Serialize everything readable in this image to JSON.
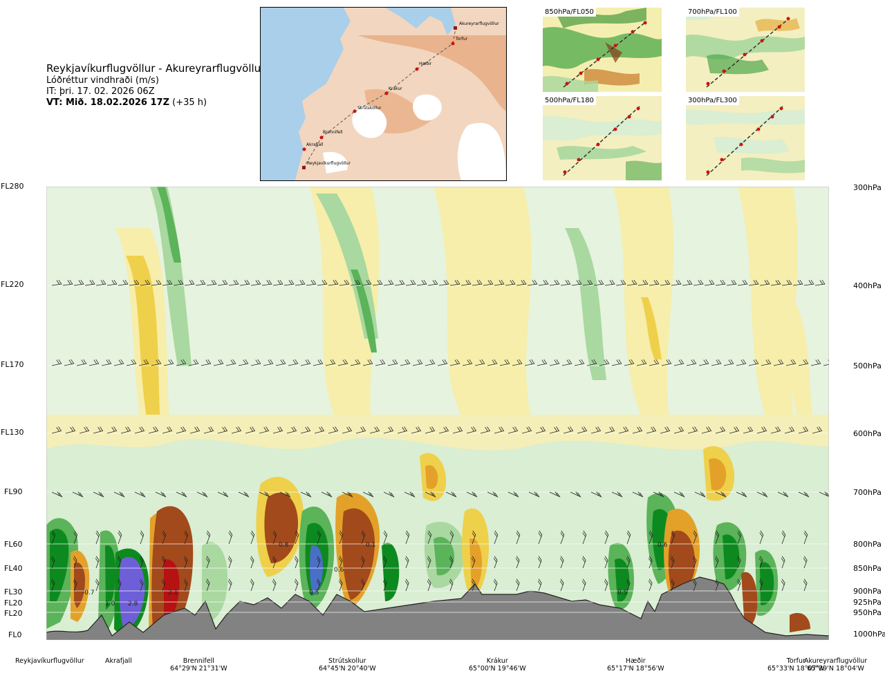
{
  "header": {
    "route": "Reykjavíkurflugvöllur - Akureyrarflugvöllur",
    "field": "Lóðréttur vindhraði (m/s)",
    "issue": "IT: þri. 17. 02. 2026 06Z",
    "valid_bold": "VT: Mið. 18.02.2026 17Z",
    "valid_suffix": " (+35 h)"
  },
  "route_map": {
    "points": [
      {
        "name": "Akureyrarflugvöllur"
      },
      {
        "name": "Torfur"
      },
      {
        "name": "Hæðir"
      },
      {
        "name": "Krákur"
      },
      {
        "name": "Strútskollur"
      },
      {
        "name": "Brennifell"
      },
      {
        "name": "Akrafjall"
      },
      {
        "name": "Reykjavíkurflugvöllur"
      }
    ]
  },
  "thumbnails": [
    {
      "label": "850hPa/FL050"
    },
    {
      "label": "700hPa/FL100"
    },
    {
      "label": "500hPa/FL180"
    },
    {
      "label": "300hPa/FL300"
    }
  ],
  "flight_levels": [
    "FL280",
    "FL220",
    "FL170",
    "FL130",
    "FL90",
    "FL60",
    "FL40",
    "FL30",
    "FL20",
    "FL20",
    "FL0"
  ],
  "pressure_levels": [
    "300hPa",
    "400hPa",
    "500hPa",
    "600hPa",
    "700hPa",
    "800hPa",
    "850hPa",
    "900hPa",
    "925hPa",
    "950hPa",
    "1000hPa"
  ],
  "value_labels": [
    "-0.7",
    "1.0",
    "2.8",
    "2.1",
    "0.8",
    "0.6",
    "0.5",
    "0.1",
    "0.5",
    "0.6"
  ],
  "stations": [
    {
      "name": "Reykjavíkurflugvöllur",
      "coord": ""
    },
    {
      "name": "Akrafjall",
      "coord": ""
    },
    {
      "name": "Brennifell",
      "coord": "64°29'N 21°31'W"
    },
    {
      "name": "Strútskollur",
      "coord": "64°45'N 20°40'W"
    },
    {
      "name": "Krákur",
      "coord": "65°00'N 19°46'W"
    },
    {
      "name": "Hæðir",
      "coord": "65°17'N 18°56'W"
    },
    {
      "name": "Torfur",
      "coord": "65°33'N 18°07'W"
    },
    {
      "name": "Akureyrarflugvöllur",
      "coord": "65°39'N 18°04'W"
    }
  ],
  "colors": {
    "strong_down": "#0d8a1f",
    "mod_down": "#5bb35a",
    "weak_down": "#a9d8a0",
    "very_weak_down": "#d9eed2",
    "neutral": "#f4f8ea",
    "weak_up": "#f6eeaa",
    "mod_up": "#efd04a",
    "up": "#e3a12a",
    "strong_up": "#a24a1b",
    "very_strong_up": "#b61212",
    "extreme_up": "#6e5fd8",
    "terrain": "#828282",
    "sea": "#a9cfea",
    "land_low": "#f3d8c2",
    "land_high": "#e8a77c",
    "ice": "#ffffff"
  }
}
